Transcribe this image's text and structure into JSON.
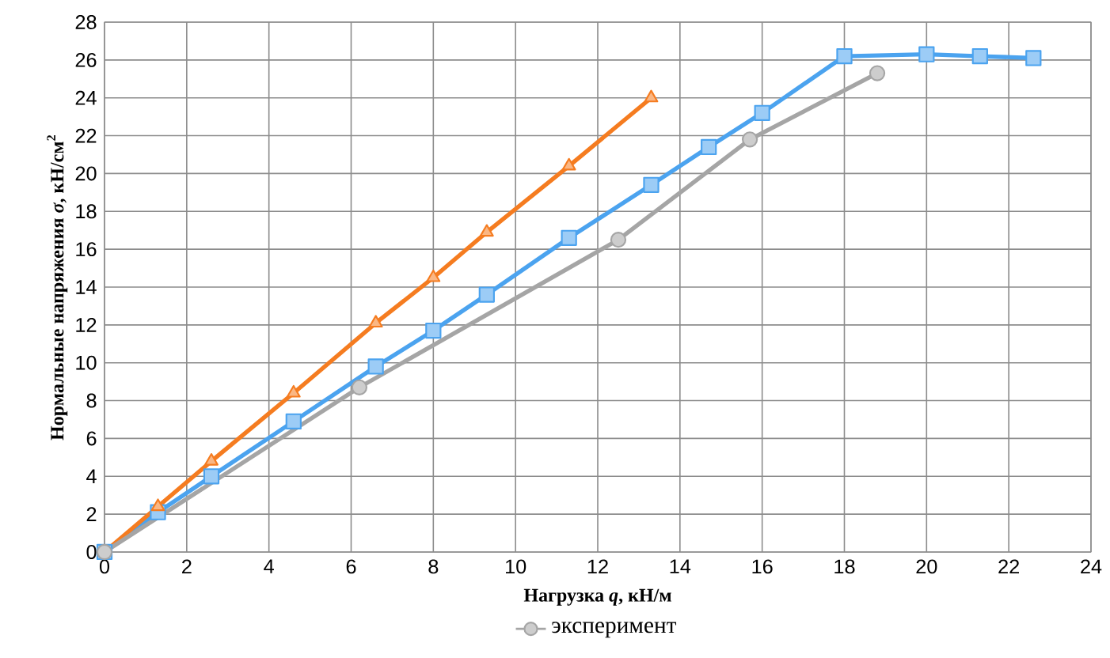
{
  "chart_data": {
    "type": "line",
    "xlabel": "Нагрузка *q*, кН/м",
    "ylabel": "Нормальные напряжения *σ*, кН/см$^{2}$",
    "xlim": [
      0,
      24
    ],
    "ylim": [
      0,
      28
    ],
    "xticks": [
      0,
      2,
      4,
      6,
      8,
      10,
      12,
      14,
      16,
      18,
      20,
      22,
      24
    ],
    "yticks": [
      0,
      2,
      4,
      6,
      8,
      10,
      12,
      14,
      16,
      18,
      20,
      22,
      24,
      26,
      28
    ],
    "grid": true,
    "legend": "bottom",
    "line_style": "solid",
    "series": [
      {
        "color": "#4ba3ef",
        "marker": "square",
        "x": [
          0,
          1.3,
          2.6,
          4.6,
          6.6,
          8.0,
          9.3,
          11.3,
          13.3,
          14.7,
          16.0,
          18.0,
          20.0,
          21.3,
          22.6
        ],
        "values": [
          0,
          2.1,
          4.0,
          6.9,
          9.8,
          11.7,
          13.6,
          16.6,
          19.4,
          21.4,
          23.2,
          26.2,
          26.3,
          26.2,
          26.1
        ]
      },
      {
        "color": "#f57c20",
        "marker": "triangle",
        "x": [
          0,
          1.3,
          2.6,
          4.6,
          6.6,
          8.0,
          9.3,
          11.3,
          13.3
        ],
        "values": [
          0,
          2.4,
          4.8,
          8.4,
          12.1,
          14.5,
          16.9,
          20.4,
          24.0
        ]
      },
      {
        "name": "эксперимент",
        "color": "#a5a5a5",
        "marker": "circle",
        "x": [
          0,
          6.2,
          12.5,
          15.7,
          18.8
        ],
        "values": [
          0,
          8.7,
          16.5,
          21.8,
          25.3
        ]
      }
    ]
  }
}
